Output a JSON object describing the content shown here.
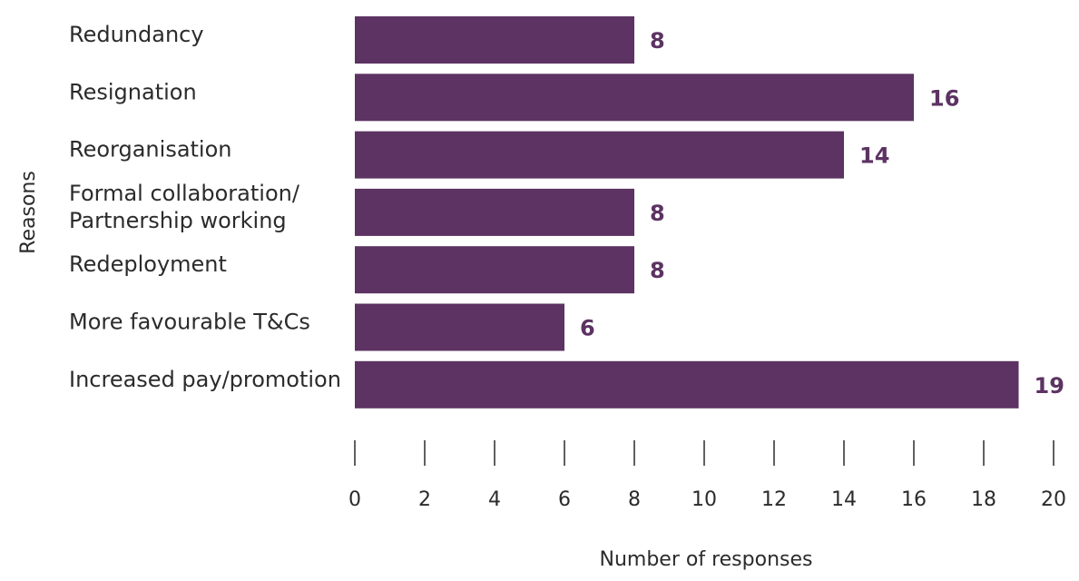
{
  "chart_data": {
    "type": "bar",
    "orientation": "horizontal",
    "categories": [
      "Redundancy",
      "Resignation",
      "Reorganisation",
      "Formal collaboration/\nPartnership working",
      "Redeployment",
      "More favourable T&Cs",
      "Increased pay/promotion"
    ],
    "values": [
      8,
      16,
      14,
      8,
      8,
      6,
      19
    ],
    "xlabel": "Number of responses",
    "ylabel": "Reasons",
    "xlim": [
      0,
      20
    ],
    "xticks": [
      "0",
      "2",
      "4",
      "6",
      "8",
      "10",
      "12",
      "14",
      "16",
      "18",
      "20"
    ],
    "grid": false,
    "bar_color": "#5c3362",
    "value_label_color": "#5c3362"
  }
}
